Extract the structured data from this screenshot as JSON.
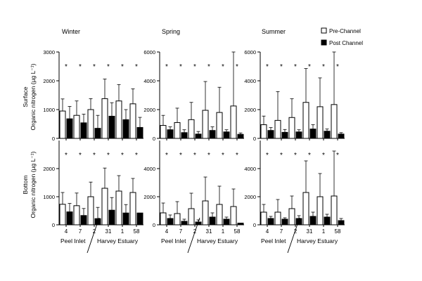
{
  "figure": {
    "legend": {
      "pre_label": "Pre-Channel",
      "post_label": "Post Channel",
      "pre_color": "#ffffff",
      "post_color": "#000000"
    },
    "row_labels": [
      {
        "line1": "Surface",
        "line2": "Organic nitrogen (µg L⁻¹)"
      },
      {
        "line1": "Bottom",
        "line2": "Organic nitrogen (µg L⁻¹)"
      }
    ],
    "season_labels": [
      "Winter",
      "Spring",
      "Summer"
    ],
    "region_labels": {
      "left": "Peel Inlet",
      "right": "Harvey Estuary"
    },
    "significance_marker": "*"
  },
  "chart_data": [
    {
      "type": "bar",
      "title": "Winter",
      "row": "Surface",
      "categories": [
        "4",
        "7",
        "2",
        "31",
        "1",
        "58"
      ],
      "ylim": [
        0,
        3000
      ],
      "yticks": [
        0,
        1000,
        2000,
        3000
      ],
      "series": [
        {
          "name": "Pre-Channel",
          "values": [
            950,
            800,
            1000,
            1380,
            1300,
            1200
          ],
          "errors": [
            420,
            500,
            380,
            680,
            570,
            520
          ]
        },
        {
          "name": "Post Channel",
          "values": [
            680,
            540,
            350,
            770,
            650,
            380
          ],
          "errors": [
            430,
            300,
            450,
            470,
            350,
            350
          ]
        }
      ],
      "significant": [
        true,
        true,
        true,
        true,
        true,
        true
      ]
    },
    {
      "type": "bar",
      "title": "Spring",
      "row": "Surface",
      "categories": [
        "4",
        "7",
        "2",
        "31",
        "1",
        "58"
      ],
      "ylim": [
        0,
        6000
      ],
      "yticks": [
        0,
        2000,
        4000,
        6000
      ],
      "series": [
        {
          "name": "Pre-Channel",
          "values": [
            900,
            1100,
            1300,
            1950,
            1800,
            2250
          ],
          "errors": [
            700,
            1000,
            1200,
            2000,
            1750,
            3750
          ]
        },
        {
          "name": "Post Channel",
          "values": [
            600,
            400,
            300,
            550,
            450,
            280
          ],
          "errors": [
            200,
            200,
            180,
            250,
            150,
            100
          ]
        }
      ],
      "significant": [
        true,
        true,
        true,
        true,
        true,
        true
      ]
    },
    {
      "type": "bar",
      "title": "Summer",
      "row": "Surface",
      "categories": [
        "4",
        "7",
        "2",
        "31",
        "1",
        "58"
      ],
      "ylim": [
        0,
        6000
      ],
      "yticks": [
        0,
        2000,
        4000,
        6000
      ],
      "series": [
        {
          "name": "Pre-Channel",
          "values": [
            950,
            1250,
            1450,
            2500,
            2200,
            2350
          ],
          "errors": [
            600,
            2000,
            1300,
            2350,
            2000,
            3650
          ]
        },
        {
          "name": "Post Channel",
          "values": [
            550,
            420,
            450,
            650,
            500,
            300
          ],
          "errors": [
            200,
            200,
            150,
            300,
            150,
            100
          ]
        }
      ],
      "significant": [
        true,
        true,
        true,
        true,
        true,
        true
      ]
    },
    {
      "type": "bar",
      "title": "Winter",
      "row": "Bottom",
      "categories": [
        "4",
        "7",
        "2",
        "31",
        "1",
        "58"
      ],
      "ylim": [
        0,
        3000
      ],
      "yticks": [
        0,
        1000,
        2000
      ],
      "series": [
        {
          "name": "Pre-Channel",
          "values": [
            730,
            680,
            1000,
            1300,
            1200,
            1150
          ],
          "errors": [
            420,
            450,
            520,
            720,
            550,
            500
          ]
        },
        {
          "name": "Post Channel",
          "values": [
            460,
            330,
            220,
            520,
            420,
            420
          ],
          "errors": [
            300,
            250,
            400,
            450,
            300,
            0
          ]
        }
      ],
      "significant": [
        true,
        true,
        true,
        true,
        true,
        true
      ]
    },
    {
      "type": "bar",
      "title": "Spring",
      "row": "Bottom",
      "categories": [
        "4",
        "7",
        "2",
        "31",
        "1",
        "58"
      ],
      "ylim": [
        0,
        6000
      ],
      "yticks": [
        0,
        2000,
        4000
      ],
      "series": [
        {
          "name": "Pre-Channel",
          "values": [
            850,
            800,
            1150,
            1700,
            1450,
            1300
          ],
          "errors": [
            700,
            850,
            1100,
            1700,
            1300,
            1250
          ]
        },
        {
          "name": "Post Channel",
          "values": [
            450,
            250,
            200,
            550,
            400,
            120
          ],
          "errors": [
            250,
            150,
            150,
            300,
            150,
            0
          ]
        }
      ],
      "significant": [
        true,
        true,
        true,
        true,
        true,
        true
      ]
    },
    {
      "type": "bar",
      "title": "Summer",
      "row": "Bottom",
      "categories": [
        "4",
        "7",
        "2",
        "31",
        "1",
        "58"
      ],
      "ylim": [
        0,
        6000
      ],
      "yticks": [
        0,
        2000,
        4000
      ],
      "series": [
        {
          "name": "Pre-Channel",
          "values": [
            900,
            900,
            1150,
            2300,
            2000,
            2050
          ],
          "errors": [
            550,
            900,
            900,
            2250,
            1650,
            3200
          ]
        },
        {
          "name": "Post Channel",
          "values": [
            450,
            400,
            450,
            600,
            550,
            300
          ],
          "errors": [
            150,
            100,
            200,
            300,
            200,
            150
          ]
        }
      ],
      "significant": [
        true,
        true,
        true,
        true,
        true,
        true
      ]
    }
  ]
}
